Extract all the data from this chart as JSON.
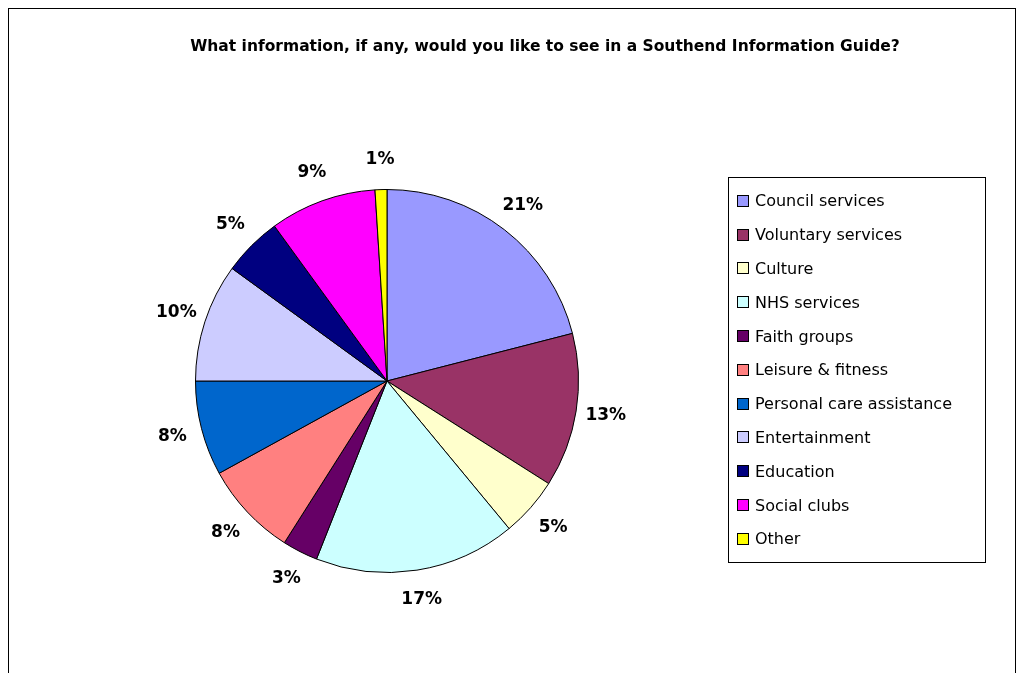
{
  "chart_data": {
    "type": "pie",
    "title": "What information, if any, would you like to see in a Southend Information Guide?",
    "categories": [
      "Council services",
      "Voluntary services",
      "Culture",
      "NHS services",
      "Faith groups",
      "Leisure & fitness",
      "Personal care assistance",
      "Entertainment",
      "Education",
      "Social clubs",
      "Other"
    ],
    "values": [
      21,
      13,
      5,
      17,
      3,
      8,
      8,
      10,
      5,
      9,
      1
    ],
    "colors": [
      "#9999ff",
      "#993366",
      "#ffffcc",
      "#ccffff",
      "#660066",
      "#ff8080",
      "#0066cc",
      "#ccccff",
      "#000080",
      "#ff00ff",
      "#ffff00"
    ],
    "value_labels": [
      "21%",
      "13%",
      "5%",
      "17%",
      "3%",
      "8%",
      "8%",
      "10%",
      "5%",
      "9%",
      "1%"
    ],
    "legend": "right"
  }
}
